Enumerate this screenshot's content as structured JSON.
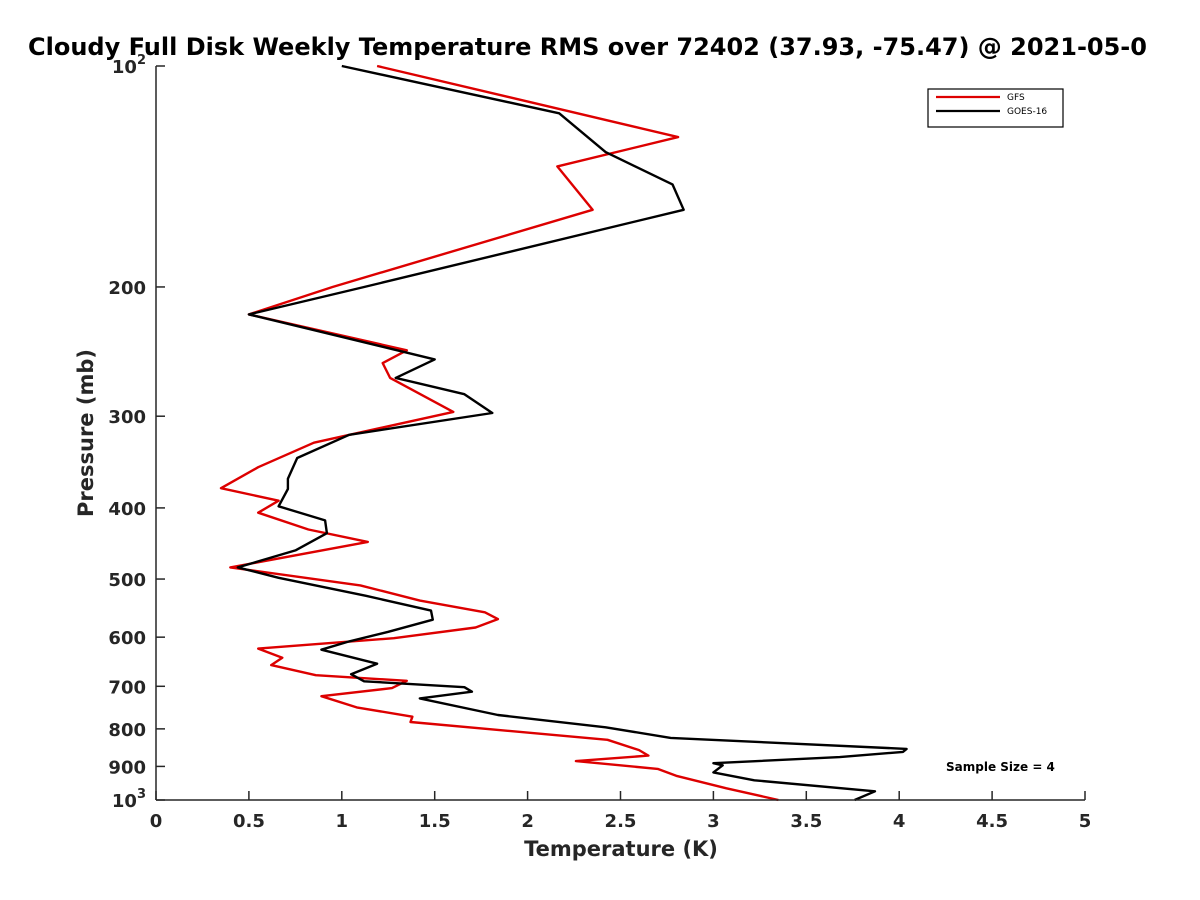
{
  "chart_data": {
    "type": "line",
    "title": "Cloudy Full Disk Weekly Temperature RMS over 72402 (37.93, -75.47) @ 2021-05-0",
    "xlabel": "Temperature (K)",
    "ylabel": "Pressure (mb)",
    "xlim": [
      0,
      5
    ],
    "ylim": [
      100,
      1000
    ],
    "y_scale": "log",
    "y_reversed": true,
    "x_ticks": [
      "0",
      "0.5",
      "1",
      "1.5",
      "2",
      "2.5",
      "3",
      "3.5",
      "4",
      "4.5",
      "5"
    ],
    "y_ticks": [
      {
        "value": 100,
        "base": "10",
        "exp": "2"
      },
      {
        "value": 200,
        "label": "200"
      },
      {
        "value": 300,
        "label": "300"
      },
      {
        "value": 400,
        "label": "400"
      },
      {
        "value": 500,
        "label": "500"
      },
      {
        "value": 600,
        "label": "600"
      },
      {
        "value": 700,
        "label": "700"
      },
      {
        "value": 800,
        "label": "800"
      },
      {
        "value": 900,
        "label": "900"
      },
      {
        "value": 1000,
        "base": "10",
        "exp": "3"
      }
    ],
    "grid": false,
    "legend_position": "top-right",
    "annotation": "Sample Size = 4",
    "series": [
      {
        "name": "GFS",
        "color": "#dd0000",
        "points": [
          [
            1.19,
            100
          ],
          [
            2.81,
            125
          ],
          [
            2.16,
            137
          ],
          [
            2.35,
            157
          ],
          [
            0.95,
            200
          ],
          [
            0.5,
            218
          ],
          [
            1.35,
            244
          ],
          [
            1.22,
            254
          ],
          [
            1.26,
            266
          ],
          [
            1.6,
            296
          ],
          [
            0.85,
            326
          ],
          [
            0.55,
            352
          ],
          [
            0.35,
            376
          ],
          [
            0.66,
            391
          ],
          [
            0.55,
            406
          ],
          [
            0.82,
            428
          ],
          [
            1.14,
            445
          ],
          [
            0.4,
            482
          ],
          [
            1.1,
            510
          ],
          [
            1.42,
            535
          ],
          [
            1.77,
            555
          ],
          [
            1.84,
            567
          ],
          [
            1.72,
            582
          ],
          [
            1.28,
            602
          ],
          [
            0.55,
            622
          ],
          [
            0.68,
            640
          ],
          [
            0.62,
            655
          ],
          [
            0.86,
            676
          ],
          [
            1.35,
            688
          ],
          [
            1.27,
            704
          ],
          [
            0.89,
            722
          ],
          [
            1.08,
            748
          ],
          [
            1.38,
            770
          ],
          [
            1.37,
            783
          ],
          [
            2.43,
            828
          ],
          [
            2.6,
            855
          ],
          [
            2.65,
            870
          ],
          [
            2.26,
            885
          ],
          [
            2.7,
            907
          ],
          [
            2.8,
            927
          ],
          [
            3.07,
            964
          ],
          [
            3.35,
            1000
          ]
        ]
      },
      {
        "name": "GOES-16",
        "color": "#000000",
        "points": [
          [
            1.0,
            100
          ],
          [
            2.17,
            116
          ],
          [
            2.42,
            131
          ],
          [
            2.78,
            145
          ],
          [
            2.84,
            157
          ],
          [
            1.12,
            200
          ],
          [
            0.5,
            218
          ],
          [
            1.5,
            251
          ],
          [
            1.29,
            266
          ],
          [
            1.66,
            280
          ],
          [
            1.81,
            297
          ],
          [
            1.04,
            318
          ],
          [
            0.76,
            342
          ],
          [
            0.71,
            365
          ],
          [
            0.71,
            377
          ],
          [
            0.66,
            398
          ],
          [
            0.91,
            416
          ],
          [
            0.92,
            433
          ],
          [
            0.75,
            457
          ],
          [
            0.44,
            482
          ],
          [
            0.66,
            498
          ],
          [
            1.13,
            527
          ],
          [
            1.48,
            552
          ],
          [
            1.49,
            568
          ],
          [
            1.25,
            590
          ],
          [
            1.04,
            608
          ],
          [
            0.89,
            624
          ],
          [
            1.19,
            652
          ],
          [
            1.05,
            674
          ],
          [
            1.12,
            689
          ],
          [
            1.66,
            702
          ],
          [
            1.7,
            712
          ],
          [
            1.42,
            727
          ],
          [
            1.84,
            766
          ],
          [
            2.42,
            796
          ],
          [
            2.77,
            823
          ],
          [
            4.04,
            852
          ],
          [
            4.02,
            860
          ],
          [
            3.68,
            874
          ],
          [
            3.0,
            891
          ],
          [
            3.05,
            897
          ],
          [
            3.0,
            917
          ],
          [
            3.22,
            940
          ],
          [
            3.87,
            973
          ],
          [
            3.76,
            1000
          ]
        ]
      }
    ]
  }
}
